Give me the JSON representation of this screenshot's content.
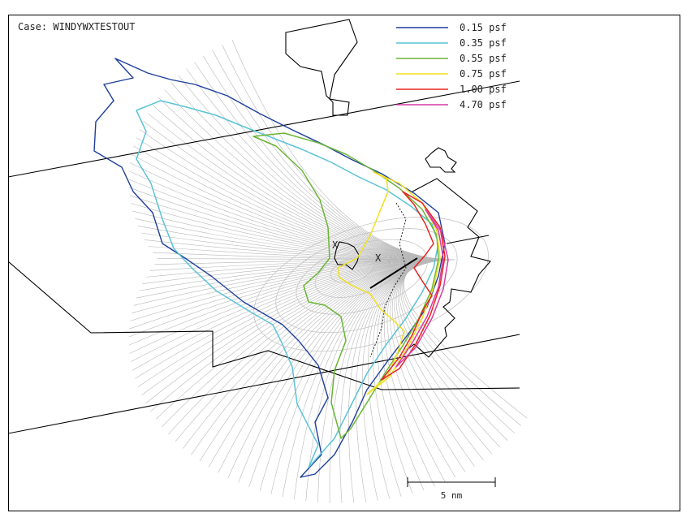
{
  "case_label": "Case: WINDYWXTESTOUT",
  "scale_bar": {
    "label": "5 nm"
  },
  "marker_glyph": "X",
  "chart_data": {
    "type": "contour-map",
    "title": "",
    "case": "WINDYWXTESTOUT",
    "legend_placement": "top-right",
    "units": "psf",
    "series": [
      {
        "name": "0.15 psf",
        "level": 0.15,
        "color": "#1f3f9a"
      },
      {
        "name": "0.35 psf",
        "level": 0.35,
        "color": "#5bc3d6"
      },
      {
        "name": "0.55 psf",
        "level": 0.55,
        "color": "#6ab536"
      },
      {
        "name": "0.75 psf",
        "level": 0.75,
        "color": "#f0e020"
      },
      {
        "name": "1.00 psf",
        "level": 1.0,
        "color": "#e8231d"
      },
      {
        "name": "4.70 psf",
        "level": 4.7,
        "color": "#d63aa6"
      }
    ],
    "scale_bar_nm": 5,
    "markers": [
      "X",
      "X"
    ]
  }
}
